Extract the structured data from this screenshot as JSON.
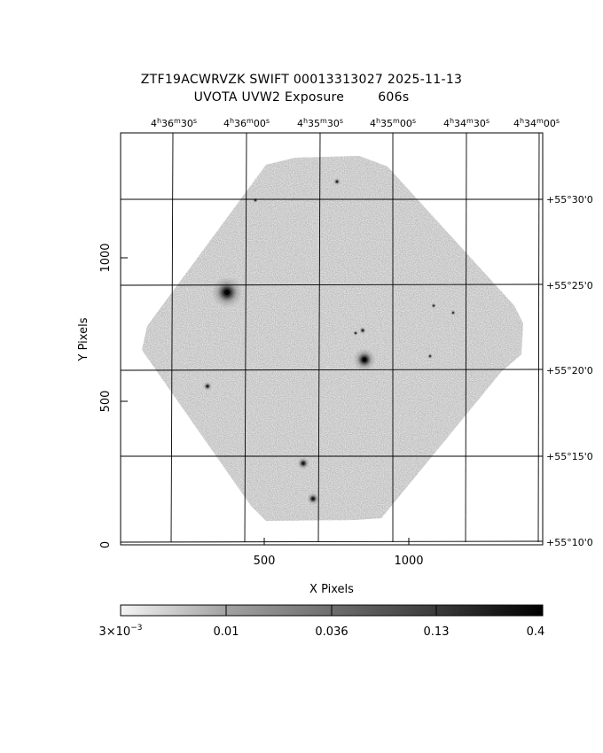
{
  "header": {
    "title_line1": "ZTF19ACWRVZK SWIFT 00013313027 2025-11-13",
    "title_line2": "UVOTA UVW2 Exposure        606s"
  },
  "axes": {
    "xlabel": "X Pixels",
    "ylabel": "Y Pixels",
    "x_ticks": [
      "500",
      "1000"
    ],
    "y_ticks": [
      "0",
      "500",
      "1000"
    ],
    "ra_ticks": [
      {
        "h": "4",
        "m": "36",
        "s": "30"
      },
      {
        "h": "4",
        "m": "36",
        "s": "00"
      },
      {
        "h": "4",
        "m": "35",
        "s": "30"
      },
      {
        "h": "4",
        "m": "35",
        "s": "00"
      },
      {
        "h": "4",
        "m": "34",
        "s": "30"
      },
      {
        "h": "4",
        "m": "34",
        "s": "00"
      }
    ],
    "dec_ticks": [
      "+55°30'0",
      "+55°25'0",
      "+55°20'0",
      "+55°15'0",
      "+55°10'0"
    ]
  },
  "colorbar": {
    "label_first_base": "3×10",
    "label_first_exp": "−3",
    "labels": [
      "0.01",
      "0.036",
      "0.13",
      "0.4"
    ]
  },
  "colors": {
    "background": "#ffffff",
    "image_noise": "#8c8c8c",
    "frame": "#000000"
  }
}
